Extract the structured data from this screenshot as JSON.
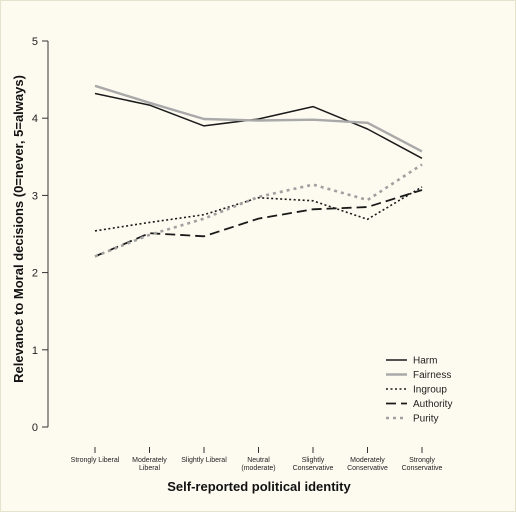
{
  "chart_data": {
    "type": "line",
    "title": "",
    "xlabel": "Self-reported political identity",
    "ylabel": "Relevance to Moral decisions (0=never, 5=always)",
    "ylim": [
      0,
      5
    ],
    "yticks": [
      "0",
      "1",
      "2",
      "3",
      "4",
      "5"
    ],
    "grid": false,
    "legend_position": "bottom-right",
    "categories": [
      [
        "Strongly Liberal"
      ],
      [
        "Moderately",
        "Liberal"
      ],
      [
        "Slightly Liberal"
      ],
      [
        "Neutral",
        "(moderate)"
      ],
      [
        "Slightly",
        "Conservative"
      ],
      [
        "Moderately",
        "Conservative"
      ],
      [
        "Strongly",
        "Conservative"
      ]
    ],
    "series": [
      {
        "name": "Harm",
        "color": "#1a1a1a",
        "style": "solid",
        "values": [
          4.32,
          4.17,
          3.9,
          3.99,
          4.15,
          3.86,
          3.48
        ]
      },
      {
        "name": "Fairness",
        "color": "#a9a9a9",
        "style": "solid",
        "values": [
          4.42,
          4.2,
          3.99,
          3.97,
          3.98,
          3.94,
          3.57
        ]
      },
      {
        "name": "Ingroup",
        "color": "#1a1a1a",
        "style": "dotted",
        "values": [
          2.54,
          2.65,
          2.75,
          2.97,
          2.93,
          2.69,
          3.11
        ]
      },
      {
        "name": "Authority",
        "color": "#1a1a1a",
        "style": "dashed",
        "values": [
          2.21,
          2.51,
          2.47,
          2.7,
          2.82,
          2.85,
          3.07
        ]
      },
      {
        "name": "Purity",
        "color": "#a0a0a0",
        "style": "dotted-thick",
        "values": [
          2.21,
          2.49,
          2.7,
          2.98,
          3.14,
          2.94,
          3.4
        ]
      }
    ]
  }
}
